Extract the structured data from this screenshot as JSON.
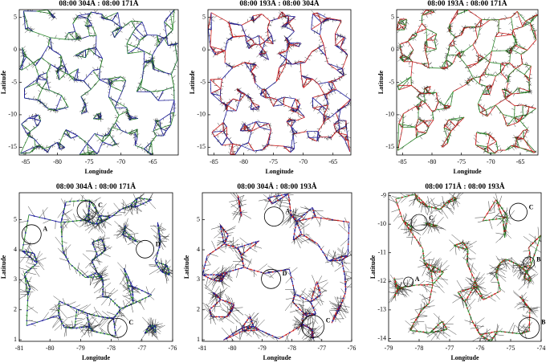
{
  "chart_data": [
    {
      "type": "network",
      "title": "08:00 304Å :  08:00 171Å",
      "xlabel": "Longitude",
      "ylabel": "Latitude",
      "xlim": [
        -86,
        -61
      ],
      "ylim": [
        -16.2,
        6.2
      ],
      "xticks": [
        -85,
        -80,
        -75,
        -70,
        -65
      ],
      "yticks": [
        5,
        0,
        -5,
        -10,
        -15
      ],
      "colors": [
        "#2e8b2e",
        "#2020a0"
      ],
      "annotations": []
    },
    {
      "type": "network",
      "title": "08:00 193Å :  08:00 304Å",
      "xlabel": "Longitude",
      "ylabel": "Latitude",
      "xlim": [
        -86,
        -62
      ],
      "ylim": [
        -16.2,
        6.2
      ],
      "xticks": [
        -85,
        -80,
        -75,
        -70,
        -65
      ],
      "yticks": [
        5,
        0,
        -5,
        -10,
        -15
      ],
      "colors": [
        "#d02020",
        "#2020a0"
      ],
      "annotations": []
    },
    {
      "type": "network",
      "title": "08:00 193Å :  08:00 171Å",
      "xlabel": "Longitude",
      "ylabel": "Latitude",
      "xlim": [
        -86,
        -62
      ],
      "ylim": [
        -16.2,
        6.2
      ],
      "xticks": [
        -85,
        -80,
        -75,
        -70,
        -65
      ],
      "yticks": [
        5,
        0,
        -5,
        -10,
        -15
      ],
      "colors": [
        "#d02020",
        "#2e8b2e"
      ],
      "annotations": []
    },
    {
      "type": "network",
      "title": "08:00 304Å :  08:00 171Å",
      "xlabel": "Longitude",
      "ylabel": "Latitude",
      "xlim": [
        -81,
        -76
      ],
      "ylim": [
        0.95,
        5.9
      ],
      "xticks": [
        -81,
        -80,
        -79,
        -78,
        -77,
        -76
      ],
      "yticks": [
        1,
        2,
        3,
        4,
        5
      ],
      "colors": [
        "#2e8b2e",
        "#2020a0"
      ],
      "annotations": [
        "A",
        "C",
        "D",
        "C"
      ]
    },
    {
      "type": "network",
      "title": "08:00 304Å :  08:00 193Å",
      "xlabel": "Longitude",
      "ylabel": "Latitude",
      "xlim": [
        -81,
        -76
      ],
      "ylim": [
        0.95,
        5.9
      ],
      "xticks": [
        -81,
        -80,
        -79,
        -78,
        -77,
        -76
      ],
      "yticks": [
        1,
        2,
        3,
        4,
        5
      ],
      "colors": [
        "#d02020",
        "#2020a0"
      ],
      "annotations": [
        "A",
        "D",
        "C"
      ]
    },
    {
      "type": "network",
      "title": "08:00 171Å :  08:00 193Å",
      "xlabel": "Longitude",
      "ylabel": "Latitude",
      "xlim": [
        -79,
        -74
      ],
      "ylim": [
        -14.1,
        -8.9
      ],
      "xticks": [
        -79,
        -78,
        -77,
        -76,
        -75,
        -74
      ],
      "yticks": [
        -9,
        -10,
        -11,
        -12,
        -13,
        -14
      ],
      "colors": [
        "#d02020",
        "#2e8b2e"
      ],
      "annotations": [
        "C",
        "C",
        "B",
        "A",
        "B"
      ]
    }
  ]
}
